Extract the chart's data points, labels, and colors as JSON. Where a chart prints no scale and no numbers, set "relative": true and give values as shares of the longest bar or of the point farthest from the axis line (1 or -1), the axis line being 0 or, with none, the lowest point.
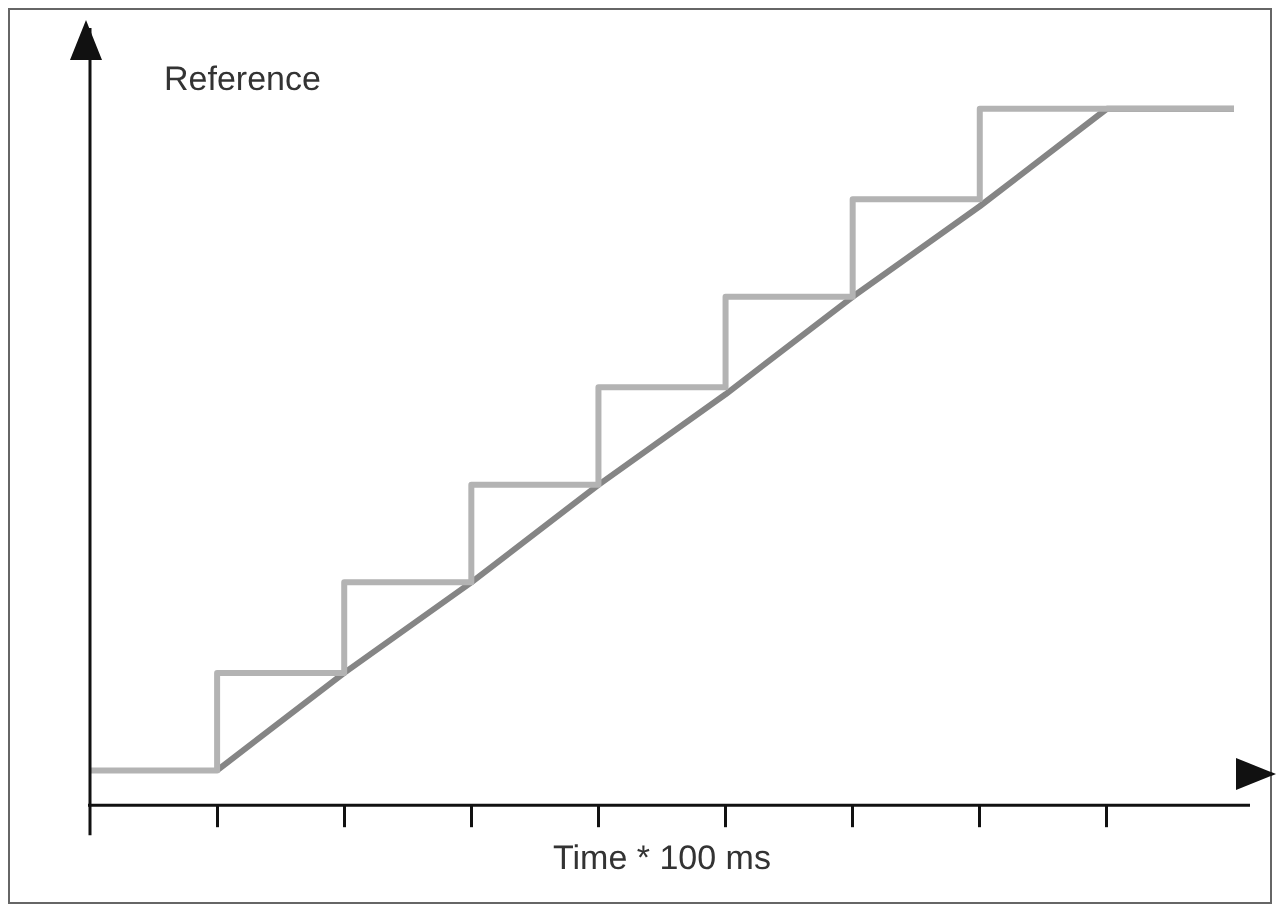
{
  "chart_data": {
    "type": "line",
    "relative": true,
    "ylabel": "Reference",
    "xlabel": "Time * 100 ms",
    "categories": [
      null,
      null,
      null,
      null,
      null,
      null,
      null,
      null,
      null,
      null
    ],
    "marker": "none",
    "legend": false,
    "grid": false,
    "tick_labels": false,
    "series": [
      {
        "type": "step",
        "color": "#b3b3b3",
        "values": [
          0.05,
          0.19,
          0.32,
          0.46,
          0.6,
          0.73,
          0.87,
          1,
          1,
          1
        ]
      },
      {
        "type": "line",
        "color": "#858585",
        "values": [
          null,
          0.05,
          0.19,
          0.32,
          0.46,
          0.59,
          0.73,
          0.86,
          1,
          1
        ]
      }
    ]
  }
}
